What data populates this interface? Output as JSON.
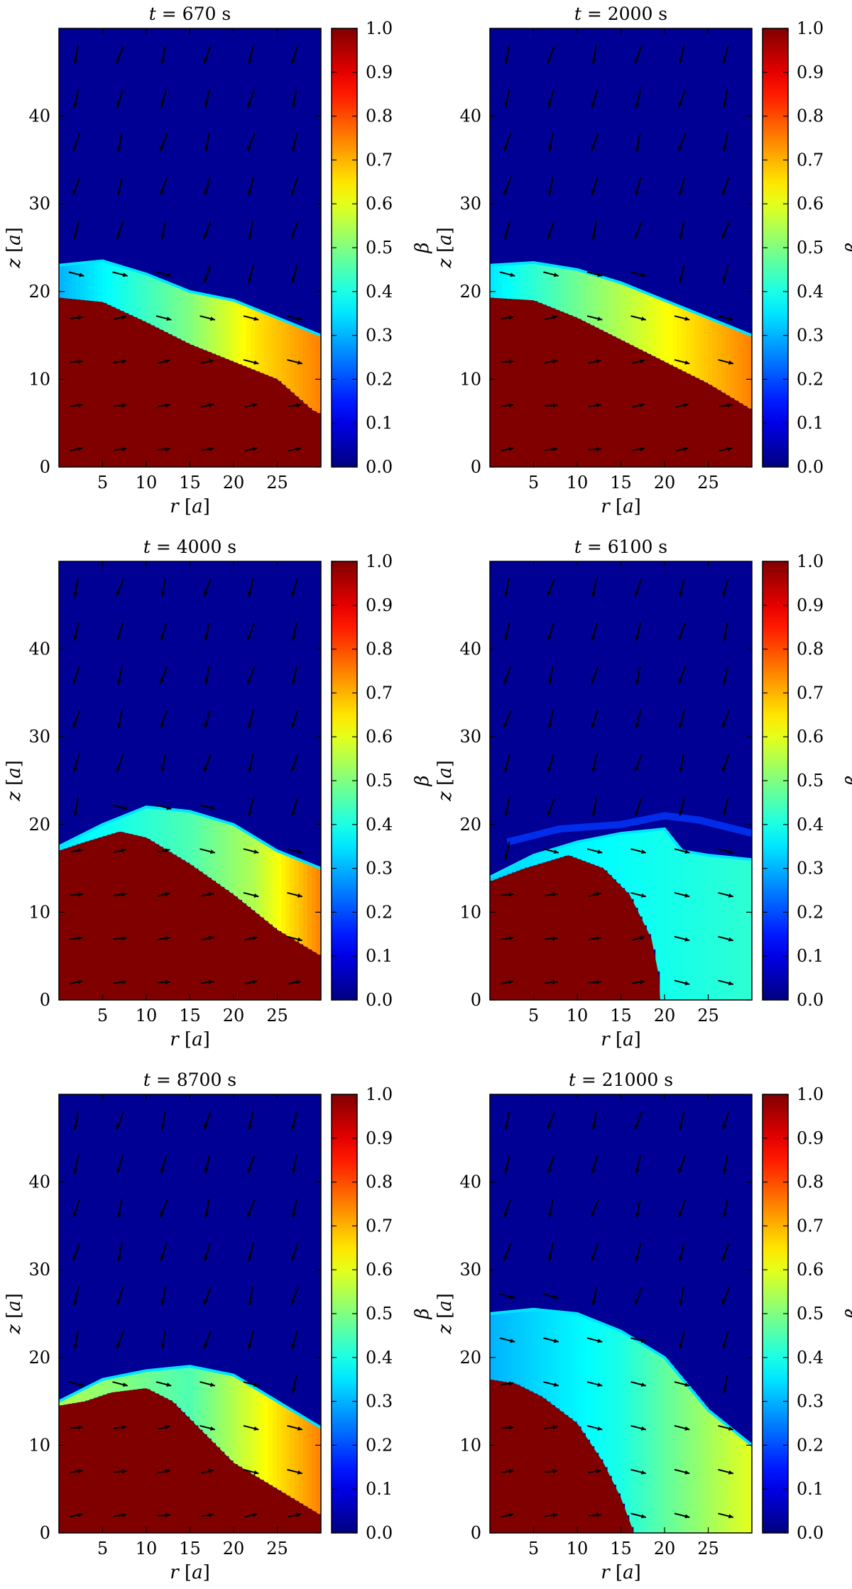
{
  "chart_data": [
    {
      "type": "heatmap",
      "title": "t = 670 s",
      "title_var": "t",
      "title_value": "670 s",
      "xlabel": "r [a]",
      "ylabel": "z [a]",
      "colorbar_label": "β",
      "xlim": [
        0,
        30
      ],
      "ylim": [
        0,
        50
      ],
      "xticks": [
        5,
        10,
        15,
        20,
        25
      ],
      "yticks": [
        0,
        10,
        20,
        30,
        40
      ],
      "clim": [
        0.0,
        1.0
      ],
      "colorbar_ticks": [
        "0.0",
        "0.1",
        "0.2",
        "0.3",
        "0.4",
        "0.5",
        "0.6",
        "0.7",
        "0.8",
        "0.9",
        "1.0"
      ],
      "colormap": "jet",
      "dense_boundary": [
        [
          0,
          19.3
        ],
        [
          5,
          18.8
        ],
        [
          10,
          16.5
        ],
        [
          15,
          14
        ],
        [
          20,
          12
        ],
        [
          25,
          10
        ],
        [
          29,
          6.5
        ],
        [
          30,
          6
        ]
      ],
      "front_boundary": [
        [
          0,
          23
        ],
        [
          5,
          23.5
        ],
        [
          10,
          22
        ],
        [
          15,
          20
        ],
        [
          20,
          19
        ],
        [
          25,
          17
        ],
        [
          30,
          15
        ]
      ],
      "layer_values": [
        0.3,
        0.4,
        0.5,
        0.65,
        0.75
      ],
      "vectors": "velocity field"
    },
    {
      "type": "heatmap",
      "title": "t = 2000 s",
      "title_var": "t",
      "title_value": "2000 s",
      "xlabel": "r [a]",
      "ylabel": "z [a]",
      "colorbar_label": "β",
      "xlim": [
        0,
        30
      ],
      "ylim": [
        0,
        50
      ],
      "xticks": [
        5,
        10,
        15,
        20,
        25
      ],
      "yticks": [
        0,
        10,
        20,
        30,
        40
      ],
      "clim": [
        0.0,
        1.0
      ],
      "colorbar_ticks": [
        "0.0",
        "0.1",
        "0.2",
        "0.3",
        "0.4",
        "0.5",
        "0.6",
        "0.7",
        "0.8",
        "0.9",
        "1.0"
      ],
      "colormap": "jet",
      "dense_boundary": [
        [
          0,
          19.3
        ],
        [
          5,
          19
        ],
        [
          10,
          17
        ],
        [
          15,
          14.5
        ],
        [
          20,
          12
        ],
        [
          25,
          9.5
        ],
        [
          30,
          6.5
        ]
      ],
      "front_boundary": [
        [
          0,
          23
        ],
        [
          5,
          23.3
        ],
        [
          10,
          22.5
        ],
        [
          15,
          21
        ],
        [
          20,
          19
        ],
        [
          25,
          17
        ],
        [
          30,
          15
        ]
      ],
      "layer_values": [
        0.35,
        0.45,
        0.55,
        0.65,
        0.75
      ],
      "vectors": "velocity field"
    },
    {
      "type": "heatmap",
      "title": "t = 4000 s",
      "title_var": "t",
      "title_value": "4000 s",
      "xlabel": "r [a]",
      "ylabel": "z [a]",
      "colorbar_label": "β",
      "xlim": [
        0,
        30
      ],
      "ylim": [
        0,
        50
      ],
      "xticks": [
        5,
        10,
        15,
        20,
        25
      ],
      "yticks": [
        0,
        10,
        20,
        30,
        40
      ],
      "clim": [
        0.0,
        1.0
      ],
      "colorbar_ticks": [
        "0.0",
        "0.1",
        "0.2",
        "0.3",
        "0.4",
        "0.5",
        "0.6",
        "0.7",
        "0.8",
        "0.9",
        "1.0"
      ],
      "colormap": "jet",
      "dense_boundary": [
        [
          0,
          17
        ],
        [
          3,
          18
        ],
        [
          7,
          19.2
        ],
        [
          10,
          18.5
        ],
        [
          15,
          15.5
        ],
        [
          20,
          12
        ],
        [
          25,
          8
        ],
        [
          30,
          5
        ]
      ],
      "front_boundary": [
        [
          0,
          17.5
        ],
        [
          5,
          20
        ],
        [
          10,
          22
        ],
        [
          15,
          21.5
        ],
        [
          20,
          20
        ],
        [
          25,
          17
        ],
        [
          30,
          15
        ]
      ],
      "layer_values": [
        0.35,
        0.4,
        0.45,
        0.55,
        0.75
      ],
      "vectors": "velocity field"
    },
    {
      "type": "heatmap",
      "title": "t = 6100 s",
      "title_var": "t",
      "title_value": "6100 s",
      "xlabel": "r [a]",
      "ylabel": "z [a]",
      "colorbar_label": "β",
      "xlim": [
        0,
        30
      ],
      "ylim": [
        0,
        50
      ],
      "xticks": [
        5,
        10,
        15,
        20,
        25
      ],
      "yticks": [
        0,
        10,
        20,
        30,
        40
      ],
      "clim": [
        0.0,
        1.0
      ],
      "colorbar_ticks": [
        "0.0",
        "0.1",
        "0.2",
        "0.3",
        "0.4",
        "0.5",
        "0.6",
        "0.7",
        "0.8",
        "0.9",
        "1.0"
      ],
      "colormap": "jet",
      "dense_boundary": [
        [
          0,
          13.5
        ],
        [
          4,
          15
        ],
        [
          9,
          16.5
        ],
        [
          13,
          15
        ],
        [
          16,
          12
        ],
        [
          18.5,
          7
        ],
        [
          19.3,
          3
        ],
        [
          19.5,
          0
        ]
      ],
      "front_boundary": [
        [
          0,
          14
        ],
        [
          5,
          16.5
        ],
        [
          10,
          18
        ],
        [
          15,
          19
        ],
        [
          20,
          19.5
        ],
        [
          22,
          17
        ],
        [
          25,
          16.5
        ],
        [
          30,
          16
        ]
      ],
      "layer_values": [
        0.33,
        0.36,
        0.38,
        0.4,
        0.42
      ],
      "upper_wisp": [
        [
          2,
          18
        ],
        [
          8,
          19.5
        ],
        [
          15,
          20
        ],
        [
          20,
          21
        ],
        [
          24,
          20.5
        ],
        [
          30,
          19
        ]
      ],
      "vectors": "velocity field"
    },
    {
      "type": "heatmap",
      "title": "t = 8700 s",
      "title_var": "t",
      "title_value": "8700 s",
      "xlabel": "r [a]",
      "ylabel": "z [a]",
      "colorbar_label": "β",
      "xlim": [
        0,
        30
      ],
      "ylim": [
        0,
        50
      ],
      "xticks": [
        5,
        10,
        15,
        20,
        25
      ],
      "yticks": [
        0,
        10,
        20,
        30,
        40
      ],
      "clim": [
        0.0,
        1.0
      ],
      "colorbar_ticks": [
        "0.0",
        "0.1",
        "0.2",
        "0.3",
        "0.4",
        "0.5",
        "0.6",
        "0.7",
        "0.8",
        "0.9",
        "1.0"
      ],
      "colormap": "jet",
      "dense_boundary": [
        [
          0,
          14.5
        ],
        [
          3,
          15
        ],
        [
          6,
          16
        ],
        [
          10,
          16.5
        ],
        [
          13,
          15
        ],
        [
          17,
          11
        ],
        [
          20,
          8
        ],
        [
          25,
          5
        ],
        [
          30,
          2
        ]
      ],
      "front_boundary": [
        [
          0,
          15
        ],
        [
          5,
          17.5
        ],
        [
          10,
          18.5
        ],
        [
          15,
          19
        ],
        [
          20,
          18
        ],
        [
          25,
          15
        ],
        [
          30,
          12
        ]
      ],
      "layer_values": [
        0.55,
        0.5,
        0.45,
        0.6,
        0.75
      ],
      "vectors": "velocity field"
    },
    {
      "type": "heatmap",
      "title": "t = 21000 s",
      "title_var": "t",
      "title_value": "21000 s",
      "xlabel": "r [a]",
      "ylabel": "z [a]",
      "colorbar_label": "β",
      "xlim": [
        0,
        30
      ],
      "ylim": [
        0,
        50
      ],
      "xticks": [
        5,
        10,
        15,
        20,
        25
      ],
      "yticks": [
        0,
        10,
        20,
        30,
        40
      ],
      "clim": [
        0.0,
        1.0
      ],
      "colorbar_ticks": [
        "0.0",
        "0.1",
        "0.2",
        "0.3",
        "0.4",
        "0.5",
        "0.6",
        "0.7",
        "0.8",
        "0.9",
        "1.0"
      ],
      "colormap": "jet",
      "dense_boundary": [
        [
          0,
          17.5
        ],
        [
          3,
          17
        ],
        [
          6,
          15.5
        ],
        [
          10,
          12.5
        ],
        [
          13,
          8
        ],
        [
          15,
          4
        ],
        [
          16.5,
          0
        ]
      ],
      "front_boundary": [
        [
          0,
          25
        ],
        [
          5,
          25.5
        ],
        [
          10,
          25
        ],
        [
          15,
          23
        ],
        [
          20,
          20
        ],
        [
          25,
          14
        ],
        [
          30,
          10
        ]
      ],
      "layer_values": [
        0.3,
        0.35,
        0.4,
        0.5,
        0.6
      ],
      "vectors": "velocity field"
    }
  ]
}
